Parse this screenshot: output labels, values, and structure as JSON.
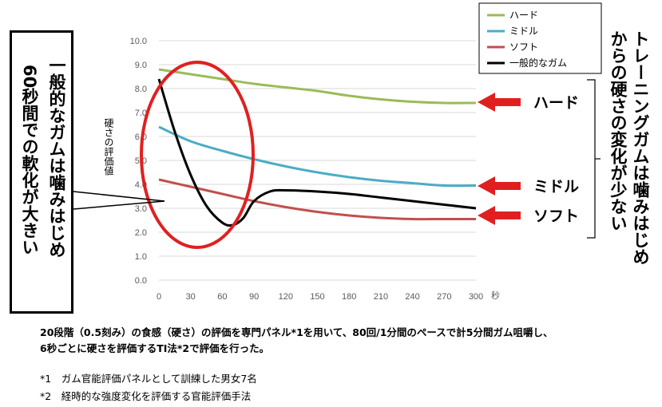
{
  "chart_data": {
    "type": "line",
    "xlabel": "秒",
    "ylabel": "硬さの評価値",
    "x": [
      0,
      30,
      60,
      90,
      120,
      150,
      180,
      210,
      240,
      270,
      300
    ],
    "x_ticks": [
      "0",
      "30",
      "60",
      "90",
      "120",
      "150",
      "180",
      "210",
      "240",
      "270",
      "300"
    ],
    "y_ticks": [
      "0.0",
      "1.0",
      "2.0",
      "3.0",
      "4.0",
      "5.0",
      "6.0",
      "7.0",
      "8.0",
      "9.0",
      "10.0"
    ],
    "xlim": [
      0,
      300
    ],
    "ylim": [
      0,
      10
    ],
    "grid": true,
    "legend_position": "top-right",
    "series": [
      {
        "name": "ハード",
        "color": "#9BBB59",
        "points": [
          [
            0,
            8.8
          ],
          [
            30,
            8.6
          ],
          [
            60,
            8.4
          ],
          [
            90,
            8.2
          ],
          [
            120,
            8.05
          ],
          [
            150,
            7.9
          ],
          [
            180,
            7.7
          ],
          [
            210,
            7.55
          ],
          [
            240,
            7.45
          ],
          [
            270,
            7.4
          ],
          [
            300,
            7.4
          ]
        ]
      },
      {
        "name": "ミドル",
        "color": "#4BACC6",
        "points": [
          [
            0,
            6.4
          ],
          [
            30,
            5.8
          ],
          [
            60,
            5.4
          ],
          [
            90,
            5.05
          ],
          [
            120,
            4.75
          ],
          [
            150,
            4.5
          ],
          [
            180,
            4.3
          ],
          [
            210,
            4.15
          ],
          [
            240,
            4.05
          ],
          [
            270,
            3.95
          ],
          [
            300,
            3.95
          ]
        ]
      },
      {
        "name": "ソフト",
        "color": "#C0504D",
        "points": [
          [
            0,
            4.2
          ],
          [
            30,
            3.9
          ],
          [
            60,
            3.6
          ],
          [
            90,
            3.3
          ],
          [
            120,
            3.05
          ],
          [
            150,
            2.85
          ],
          [
            180,
            2.7
          ],
          [
            210,
            2.6
          ],
          [
            240,
            2.55
          ],
          [
            270,
            2.55
          ],
          [
            300,
            2.55
          ]
        ]
      },
      {
        "name": "一般的なガム",
        "color": "#000000",
        "points": [
          [
            0,
            8.4
          ],
          [
            15,
            6.2
          ],
          [
            30,
            4.4
          ],
          [
            45,
            3.1
          ],
          [
            60,
            2.4
          ],
          [
            70,
            2.3
          ],
          [
            80,
            2.6
          ],
          [
            90,
            3.3
          ],
          [
            105,
            3.7
          ],
          [
            120,
            3.75
          ],
          [
            150,
            3.7
          ],
          [
            180,
            3.6
          ],
          [
            210,
            3.45
          ],
          [
            240,
            3.3
          ],
          [
            270,
            3.15
          ],
          [
            300,
            3.0
          ]
        ]
      }
    ]
  },
  "callout": {
    "line1": "一般的なガムは噛みはじめ",
    "line2": "60秒間での軟化が大きい"
  },
  "right_title": {
    "line1": "トレーニングガムは噛みはじめ",
    "line2": "からの硬さの変化が少ない"
  },
  "arrow_labels": [
    "ハード",
    "ミドル",
    "ソフト"
  ],
  "notes": {
    "line1": "20段階（0.5刻み）の食感（硬さ）の評価を専門パネル*1を用いて、80回/1分間のペースで計5分間ガム咀嚼し、",
    "line2": "6秒ごとに硬さを評価するTI法*2で評価を行った。",
    "fn1": "*1　ガム官能評価パネルとして訓練した男女7名",
    "fn2": "*2　経時的な強度変化を評価する官能評価手法"
  },
  "colors": {
    "highlight": "#E02020",
    "arrow": "#E02020",
    "grid": "#D9D9D9"
  }
}
